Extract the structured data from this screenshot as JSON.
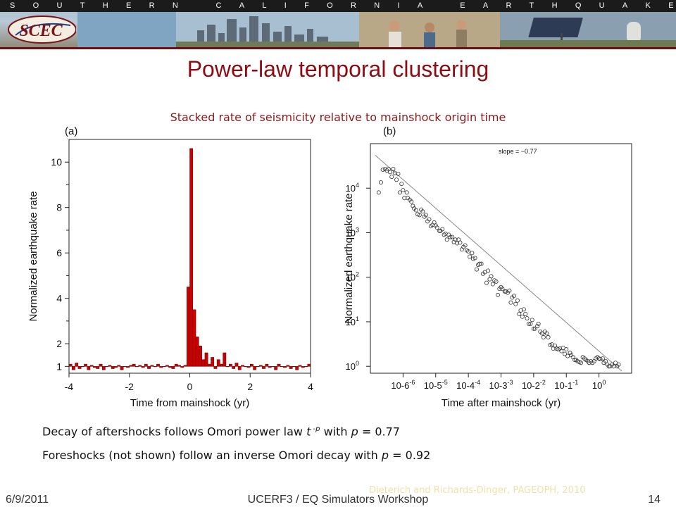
{
  "banner": {
    "org_name": "SOUTHERN CALIFORNIA EARTHQUAKE CENTER",
    "logo_text": "SCEC"
  },
  "slide": {
    "title": "Power-law temporal clustering",
    "subtitle": "Stacked rate of seismicity relative to mainshock origin time",
    "note1": {
      "prefix": "Decay of aftershocks follows Omori power law ",
      "t": "t",
      "exp": " -p",
      "mid": " with ",
      "p": "p",
      "suffix": " = 0.77"
    },
    "note2": {
      "prefix": "Foreshocks (not shown) follow an inverse Omori decay with ",
      "p": "p",
      "suffix": " = 0.92"
    },
    "citation": "Dieterich and Richards-Dinger, PAGEOPH, 2010"
  },
  "footer": {
    "date": "6/9/2011",
    "center": "UCERF3 / EQ Simulators Workshop",
    "page": "14"
  },
  "chart_data": [
    {
      "type": "bar",
      "panel_label": "(a)",
      "xlabel": "Time from mainshock (yr)",
      "ylabel": "Normalized earthquake rate",
      "xlim": [
        -4,
        4
      ],
      "ylim": [
        0.7,
        11
      ],
      "xticks": [
        -4,
        -2,
        0,
        2,
        4
      ],
      "yticks": [
        1,
        2,
        4,
        6,
        8,
        10
      ],
      "bin_width": 0.1,
      "baseline": 1,
      "bar_color": "#cc0000",
      "x": [
        -3.95,
        -3.85,
        -3.75,
        -3.65,
        -3.55,
        -3.45,
        -3.35,
        -3.25,
        -3.15,
        -3.05,
        -2.95,
        -2.85,
        -2.75,
        -2.65,
        -2.55,
        -2.45,
        -2.35,
        -2.25,
        -2.15,
        -2.05,
        -1.95,
        -1.85,
        -1.75,
        -1.65,
        -1.55,
        -1.45,
        -1.35,
        -1.25,
        -1.15,
        -1.05,
        -0.95,
        -0.85,
        -0.75,
        -0.65,
        -0.55,
        -0.45,
        -0.35,
        -0.25,
        -0.15,
        -0.05,
        0.05,
        0.15,
        0.25,
        0.35,
        0.45,
        0.55,
        0.65,
        0.75,
        0.85,
        0.95,
        1.05,
        1.15,
        1.25,
        1.35,
        1.45,
        1.55,
        1.65,
        1.75,
        1.85,
        1.95,
        2.05,
        2.15,
        2.25,
        2.35,
        2.45,
        2.55,
        2.65,
        2.75,
        2.85,
        2.95,
        3.05,
        3.15,
        3.25,
        3.35,
        3.45,
        3.55,
        3.65,
        3.75,
        3.85,
        3.95
      ],
      "values": [
        1.1,
        0.85,
        1.15,
        0.9,
        1.0,
        1.1,
        0.85,
        1.05,
        0.95,
        0.9,
        1.1,
        0.85,
        1.0,
        1.05,
        0.9,
        0.95,
        1.05,
        0.85,
        1.0,
        0.95,
        1.05,
        1.1,
        1.0,
        1.05,
        0.95,
        1.1,
        0.9,
        1.05,
        1.0,
        1.1,
        0.95,
        1.0,
        1.05,
        0.95,
        0.9,
        1.1,
        1.05,
        0.95,
        1.05,
        4.5,
        10.6,
        3.5,
        2.3,
        1.9,
        1.3,
        1.6,
        1.1,
        1.4,
        0.9,
        1.3,
        1.1,
        1.6,
        1.0,
        1.1,
        0.9,
        1.15,
        0.85,
        1.05,
        1.0,
        0.95,
        1.1,
        0.85,
        1.0,
        1.05,
        0.9,
        1.1,
        0.95,
        1.0,
        0.85,
        1.1,
        1.0,
        0.95,
        1.05,
        0.9,
        1.0,
        0.85,
        1.05,
        0.95,
        1.0,
        1.1
      ]
    },
    {
      "type": "scatter",
      "panel_label": "(b)",
      "xlabel": "Time after mainshock (yr)",
      "ylabel": "Normalized earthquake rate",
      "x_scale": "log",
      "y_scale": "log",
      "xlim": [
        1e-07,
        10
      ],
      "ylim": [
        0.7,
        100000
      ],
      "xticks": [
        1e-06,
        1e-05,
        0.0001,
        0.001,
        0.01,
        0.1,
        1
      ],
      "xtick_labels": [
        "10-6",
        "10-5",
        "10-4",
        "10-3",
        "10-2",
        "10-1",
        "10"
      ],
      "xtick_exponents": [
        "-6",
        "-5",
        "-4",
        "-3",
        "-2",
        "-1",
        "0"
      ],
      "yticks": [
        1,
        10,
        100,
        1000,
        10000
      ],
      "ytick_labels": [
        "10",
        "10",
        "10",
        "10",
        "10"
      ],
      "ytick_exponents": [
        "0",
        "1",
        "2",
        "3",
        "4"
      ],
      "annotation": "slope = −0.77",
      "fit_line": {
        "slope": -0.77,
        "x": [
          1.4e-07,
          5
        ],
        "y": [
          55000,
          0.78
        ]
      },
      "x": [
        1.8e-07,
        2.1e-07,
        2.4e-07,
        2.8e-07,
        3.2e-07,
        3.6e-07,
        4e-07,
        4.5e-07,
        5e-07,
        5.6e-07,
        6.3e-07,
        7.1e-07,
        8e-07,
        9e-07,
        1e-06,
        1.1e-06,
        1.3e-06,
        1.4e-06,
        1.6e-06,
        1.8e-06,
        2e-06,
        2.2e-06,
        2.5e-06,
        2.8e-06,
        3.2e-06,
        3.6e-06,
        4e-06,
        4.5e-06,
        5e-06,
        5.6e-06,
        6.3e-06,
        7.1e-06,
        8e-06,
        9e-06,
        1e-05,
        1.1e-05,
        1.3e-05,
        1.4e-05,
        1.6e-05,
        1.8e-05,
        2e-05,
        2.2e-05,
        2.5e-05,
        2.8e-05,
        3.2e-05,
        3.6e-05,
        4e-05,
        4.5e-05,
        5e-05,
        5.6e-05,
        6.3e-05,
        7.1e-05,
        8e-05,
        9e-05,
        0.0001,
        0.00011,
        0.00013,
        0.00014,
        0.00016,
        0.00018,
        0.0002,
        0.00022,
        0.00025,
        0.00028,
        0.00032,
        0.00036,
        0.0004,
        0.00045,
        0.0005,
        0.00056,
        0.00063,
        0.00071,
        0.0008,
        0.0009,
        0.001,
        0.0011,
        0.0013,
        0.0014,
        0.0016,
        0.0018,
        0.002,
        0.0022,
        0.0025,
        0.0028,
        0.0032,
        0.0036,
        0.004,
        0.0045,
        0.005,
        0.0056,
        0.0063,
        0.0071,
        0.008,
        0.009,
        0.01,
        0.011,
        0.013,
        0.014,
        0.016,
        0.018,
        0.02,
        0.022,
        0.025,
        0.028,
        0.032,
        0.036,
        0.04,
        0.045,
        0.05,
        0.056,
        0.063,
        0.071,
        0.08,
        0.09,
        0.1,
        0.11,
        0.13,
        0.14,
        0.16,
        0.18,
        0.2,
        0.22,
        0.25,
        0.28,
        0.32,
        0.36,
        0.4,
        0.45,
        0.5,
        0.56,
        0.63,
        0.71,
        0.8,
        0.9,
        1,
        1.1,
        1.3,
        1.4,
        1.6,
        1.8,
        2,
        2.2,
        2.5,
        2.8,
        3.2,
        3.6,
        4
      ],
      "y": [
        8000,
        13500,
        26000,
        27000,
        25000,
        27000,
        23000,
        18000,
        27000,
        22000,
        15500,
        21000,
        8000,
        12500,
        9000,
        6000,
        8000,
        6000,
        5500,
        5000,
        4000,
        3500,
        3200,
        2600,
        2500,
        3300,
        3000,
        2300,
        2500,
        1800,
        2000,
        1400,
        1500,
        1700,
        1450,
        1300,
        1100,
        1100,
        1200,
        900,
        950,
        700,
        900,
        800,
        800,
        620,
        700,
        580,
        700,
        600,
        420,
        480,
        520,
        400,
        380,
        290,
        350,
        260,
        270,
        150,
        190,
        200,
        200,
        120,
        130,
        75,
        140,
        90,
        105,
        70,
        85,
        80,
        40,
        55,
        60,
        55,
        48,
        48,
        45,
        50,
        27,
        35,
        38,
        25,
        30,
        15,
        18,
        13,
        19,
        15,
        12,
        9,
        9,
        11,
        7,
        7,
        8,
        9,
        6,
        5.5,
        4.5,
        6,
        5.5,
        4.5,
        3,
        3.1,
        2.5,
        2.9,
        2.5,
        2.4,
        2.5,
        2.2,
        2.6,
        1.9,
        2.4,
        1.7,
        2,
        1.8,
        1.6,
        1.4,
        1.4,
        1.3,
        1.25,
        1.2,
        1.6,
        1.5,
        1.4,
        1.3,
        1.2,
        1.3,
        1.2,
        1.3,
        1.5,
        1.6,
        1.5,
        1.45,
        1.5,
        1.2,
        1.3,
        1.1,
        1.0,
        1.0,
        1.1,
        1.0,
        1.2,
        1.0,
        1.1
      ]
    }
  ]
}
